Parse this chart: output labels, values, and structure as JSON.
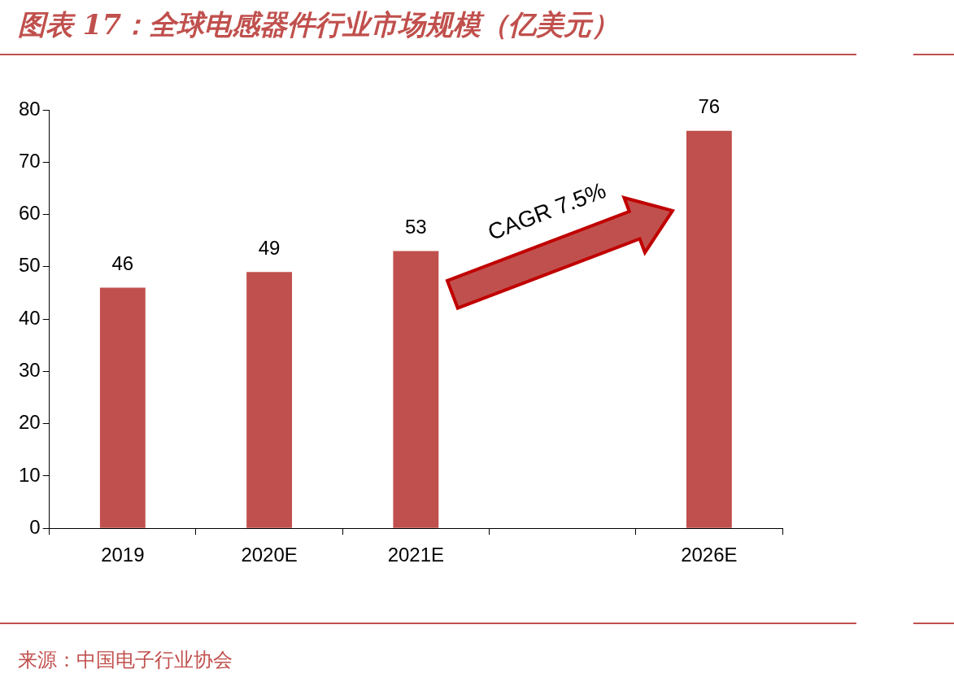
{
  "chart_data": {
    "type": "bar",
    "title": "图表 17：全球电感器件行业市场规模（亿美元）",
    "categories": [
      "2019",
      "2020E",
      "2021E",
      null,
      "2026E"
    ],
    "values": [
      46,
      49,
      53,
      null,
      76
    ],
    "color": "#c0504d",
    "ylim": [
      0,
      80
    ],
    "yticks": [
      0,
      10,
      20,
      30,
      40,
      50,
      60,
      70,
      80
    ],
    "grid": false,
    "legend": false,
    "data_labels": true,
    "annotations": [
      "CAGR 7.5%",
      "来源：中国电子行业协会"
    ]
  }
}
